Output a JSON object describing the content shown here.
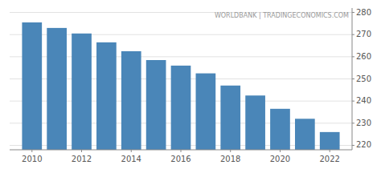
{
  "chart_data": {
    "type": "bar",
    "x": [
      2010,
      2011,
      2012,
      2013,
      2014,
      2015,
      2016,
      2017,
      2018,
      2019,
      2020,
      2021,
      2022
    ],
    "values": [
      275.5,
      273.0,
      270.5,
      266.5,
      262.5,
      258.5,
      256.0,
      252.5,
      247.0,
      242.5,
      236.5,
      232.0,
      226.0
    ],
    "color": "#4a86b8",
    "xlim": [
      2009.1,
      2022.9
    ],
    "xticks": [
      2010,
      2012,
      2014,
      2016,
      2018,
      2020,
      2022
    ],
    "ylim": [
      218,
      282
    ],
    "yticks": [
      220,
      230,
      240,
      250,
      260,
      270,
      280
    ],
    "grid": true,
    "annotation": "WORLDBANK | TRADINGECONOMICS.COM"
  }
}
